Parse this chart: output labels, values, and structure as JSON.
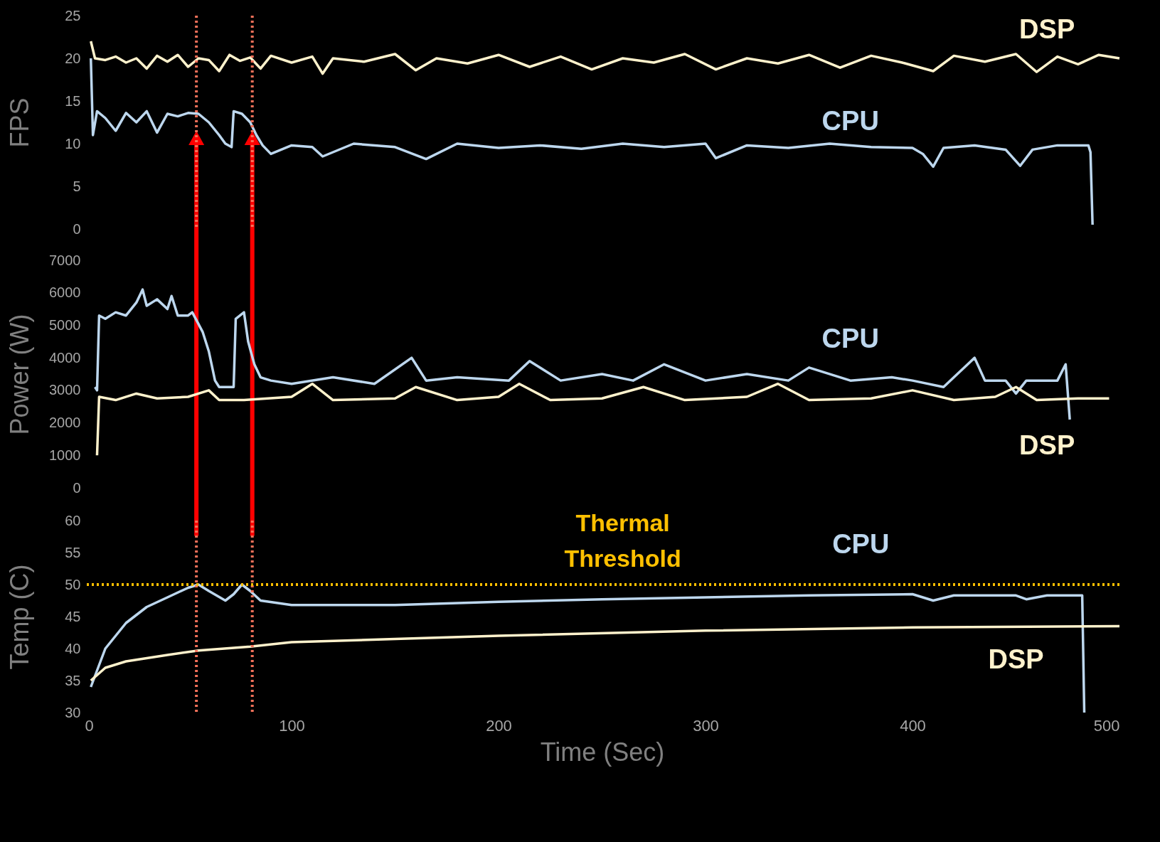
{
  "chart_data": [
    {
      "type": "line",
      "ylabel": "FPS",
      "xlim": [
        0,
        500
      ],
      "xticks": [
        0,
        100,
        200,
        300,
        400,
        500
      ],
      "ylim": [
        0,
        25
      ],
      "yticks": [
        0,
        5,
        10,
        15,
        20,
        25
      ],
      "tick_labels": "y",
      "series": [
        {
          "name": "DSP",
          "color": "#fff2cc",
          "x": [
            3,
            5,
            10,
            15,
            20,
            25,
            30,
            35,
            40,
            45,
            50,
            55,
            60,
            65,
            70,
            75,
            80,
            85,
            90,
            100,
            110,
            115,
            120,
            135,
            150,
            160,
            170,
            185,
            200,
            215,
            230,
            245,
            260,
            275,
            290,
            305,
            320,
            335,
            350,
            365,
            380,
            395,
            410,
            420,
            435,
            450,
            460,
            470,
            480,
            490,
            500
          ],
          "values": [
            22,
            20,
            19.8,
            20.2,
            19.5,
            20,
            18.8,
            20.3,
            19.6,
            20.4,
            19,
            20,
            19.8,
            18.5,
            20.4,
            19.7,
            20.1,
            18.8,
            20.3,
            19.5,
            20.2,
            18.2,
            20,
            19.6,
            20.5,
            18.6,
            20,
            19.4,
            20.4,
            19,
            20.2,
            18.7,
            20,
            19.5,
            20.5,
            18.7,
            20,
            19.4,
            20.4,
            18.9,
            20.3,
            19.5,
            18.5,
            20.3,
            19.6,
            20.5,
            18.4,
            20.2,
            19.3,
            20.4,
            20
          ]
        },
        {
          "name": "CPU",
          "color": "#bdd7ee",
          "x": [
            3,
            4,
            6,
            10,
            15,
            20,
            25,
            30,
            35,
            40,
            45,
            50,
            55,
            60,
            65,
            68,
            71,
            72,
            76,
            80,
            83,
            86,
            90,
            100,
            110,
            115,
            130,
            150,
            165,
            180,
            200,
            220,
            240,
            260,
            280,
            300,
            305,
            320,
            340,
            360,
            380,
            400,
            405,
            410,
            415,
            430,
            445,
            452,
            458,
            470,
            485,
            486,
            487
          ],
          "values": [
            20,
            11,
            13.8,
            13,
            11.5,
            13.6,
            12.5,
            13.8,
            11.3,
            13.5,
            13.2,
            13.6,
            13.5,
            12.5,
            11,
            10,
            9.6,
            13.8,
            13.5,
            12.5,
            11,
            9.8,
            8.8,
            9.8,
            9.6,
            8.5,
            10,
            9.6,
            8.2,
            10,
            9.5,
            9.8,
            9.4,
            10,
            9.6,
            10,
            8.3,
            9.8,
            9.5,
            10,
            9.6,
            9.5,
            8.8,
            7.3,
            9.5,
            9.8,
            9.3,
            7.4,
            9.3,
            9.8,
            9.8,
            9,
            0.5
          ]
        }
      ],
      "ref_lines": [
        {
          "axis": "x",
          "value": 54,
          "color": "#f4715a",
          "line_style": "dotted"
        },
        {
          "axis": "x",
          "value": 81,
          "color": "#f4715a",
          "line_style": "dotted"
        }
      ]
    },
    {
      "type": "line",
      "ylabel": "Power (W)",
      "xlim": [
        0,
        500
      ],
      "xticks": [
        0,
        100,
        200,
        300,
        400,
        500
      ],
      "ylim": [
        0,
        7000
      ],
      "yticks": [
        0,
        1000,
        2000,
        3000,
        4000,
        5000,
        6000,
        7000
      ],
      "tick_labels": "y",
      "series": [
        {
          "name": "CPU",
          "color": "#bdd7ee",
          "x": [
            5,
            6,
            7,
            10,
            15,
            20,
            25,
            28,
            30,
            35,
            40,
            42,
            45,
            50,
            52,
            57,
            60,
            63,
            65,
            72,
            73,
            77,
            79,
            82,
            85,
            90,
            100,
            120,
            140,
            158,
            165,
            180,
            205,
            215,
            230,
            250,
            265,
            280,
            300,
            320,
            340,
            350,
            370,
            390,
            400,
            415,
            420,
            430,
            435,
            445,
            450,
            455,
            465,
            470,
            474,
            476
          ],
          "values": [
            3100,
            3000,
            5300,
            5200,
            5400,
            5300,
            5700,
            6100,
            5600,
            5800,
            5500,
            5900,
            5300,
            5300,
            5400,
            4800,
            4200,
            3300,
            3100,
            3100,
            5200,
            5400,
            4500,
            3800,
            3400,
            3300,
            3200,
            3400,
            3200,
            4000,
            3300,
            3400,
            3300,
            3900,
            3300,
            3500,
            3300,
            3800,
            3300,
            3500,
            3300,
            3700,
            3300,
            3400,
            3300,
            3100,
            3400,
            4000,
            3300,
            3300,
            2900,
            3300,
            3300,
            3300,
            3800,
            2100
          ]
        },
        {
          "name": "DSP",
          "color": "#fff2cc",
          "x": [
            6,
            7,
            15,
            25,
            35,
            50,
            60,
            65,
            77,
            100,
            110,
            120,
            150,
            160,
            180,
            200,
            210,
            225,
            250,
            270,
            290,
            320,
            335,
            350,
            380,
            400,
            420,
            440,
            450,
            460,
            480,
            495
          ],
          "values": [
            1000,
            2800,
            2700,
            2900,
            2750,
            2800,
            3000,
            2700,
            2700,
            2800,
            3200,
            2700,
            2750,
            3100,
            2700,
            2800,
            3200,
            2700,
            2750,
            3100,
            2700,
            2800,
            3200,
            2700,
            2750,
            3000,
            2700,
            2800,
            3100,
            2700,
            2750,
            2750
          ]
        }
      ]
    },
    {
      "type": "line",
      "ylabel": "Temp (C)",
      "xlabel": "Time (Sec)",
      "xlim": [
        0,
        500
      ],
      "xticks": [
        0,
        100,
        200,
        300,
        400,
        500
      ],
      "ylim": [
        30,
        60
      ],
      "yticks": [
        30,
        35,
        40,
        45,
        50,
        55,
        60
      ],
      "series": [
        {
          "name": "CPU",
          "color": "#bdd7ee",
          "x": [
            3,
            10,
            20,
            30,
            40,
            50,
            55,
            60,
            68,
            72,
            76,
            80,
            85,
            100,
            150,
            200,
            250,
            300,
            350,
            400,
            410,
            420,
            450,
            455,
            465,
            482,
            483
          ],
          "values": [
            34,
            40,
            44,
            46.5,
            48,
            49.5,
            50,
            49,
            47.5,
            48.5,
            50,
            49,
            47.5,
            46.8,
            46.8,
            47.3,
            47.7,
            48,
            48.3,
            48.5,
            47.5,
            48.3,
            48.3,
            47.7,
            48.3,
            48.3,
            30
          ]
        },
        {
          "name": "DSP",
          "color": "#fff2cc",
          "x": [
            3,
            10,
            20,
            40,
            55,
            80,
            100,
            150,
            200,
            300,
            400,
            500
          ],
          "values": [
            35,
            37,
            38,
            39,
            39.7,
            40.3,
            41,
            41.5,
            42,
            42.8,
            43.3,
            43.5
          ]
        }
      ],
      "ref_lines": [
        {
          "axis": "x",
          "value": 54,
          "color": "#f4715a",
          "line_style": "dotted"
        },
        {
          "axis": "x",
          "value": 81,
          "color": "#f4715a",
          "line_style": "dotted"
        },
        {
          "axis": "y",
          "value": 50,
          "label": "Thermal Threshold",
          "color": "#ffc000",
          "line_style": "dotted"
        }
      ]
    }
  ]
}
